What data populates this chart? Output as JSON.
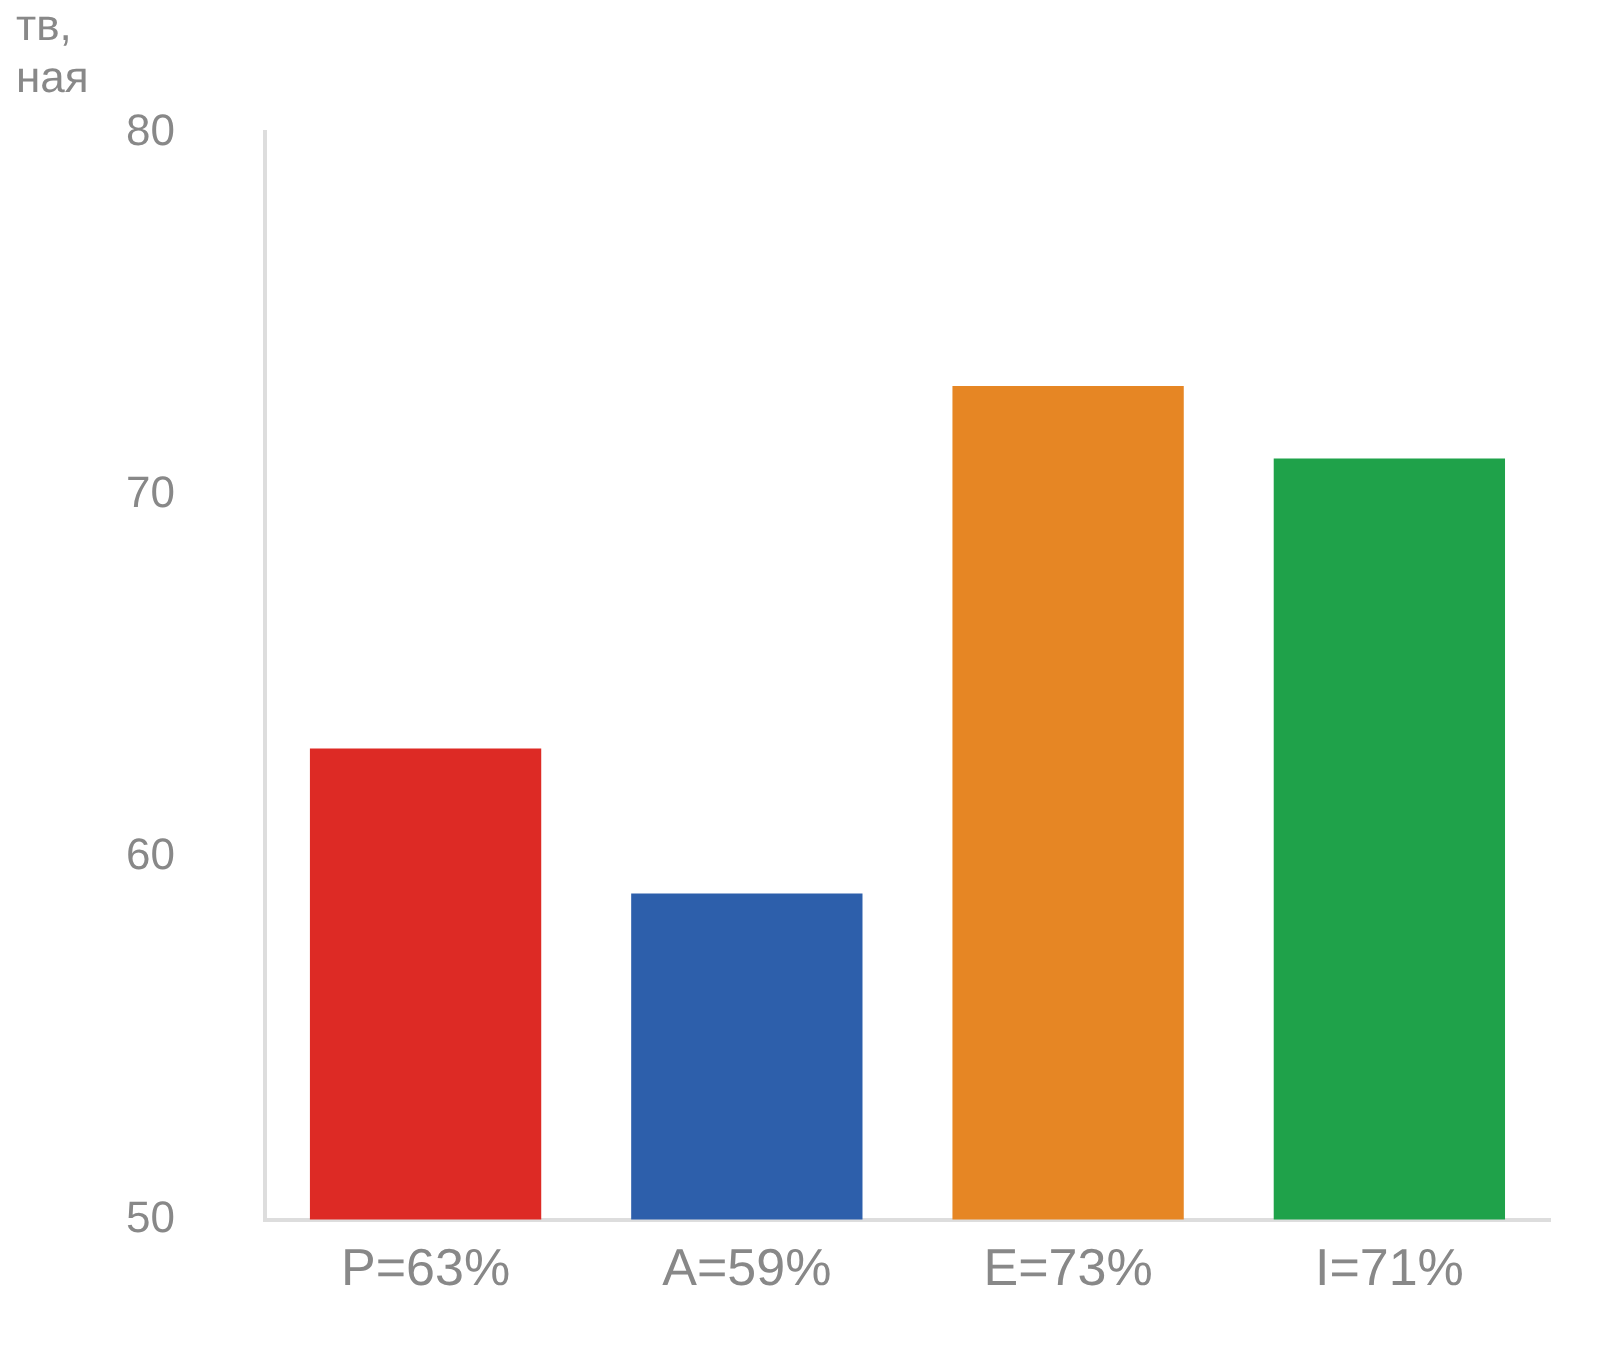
{
  "chart_data": {
    "type": "bar",
    "ylabel": "тв, ная",
    "categories": [
      "P=63%",
      "A=59%",
      "E=73%",
      "I=71%"
    ],
    "values": [
      63,
      59,
      73,
      71
    ],
    "colors": [
      "#dd2a25",
      "#2d5fab",
      "#e68624",
      "#1fa24a"
    ],
    "ylim": [
      50,
      80
    ],
    "yticks": [
      50,
      60,
      70,
      80
    ],
    "grid": false,
    "legend": false
  }
}
